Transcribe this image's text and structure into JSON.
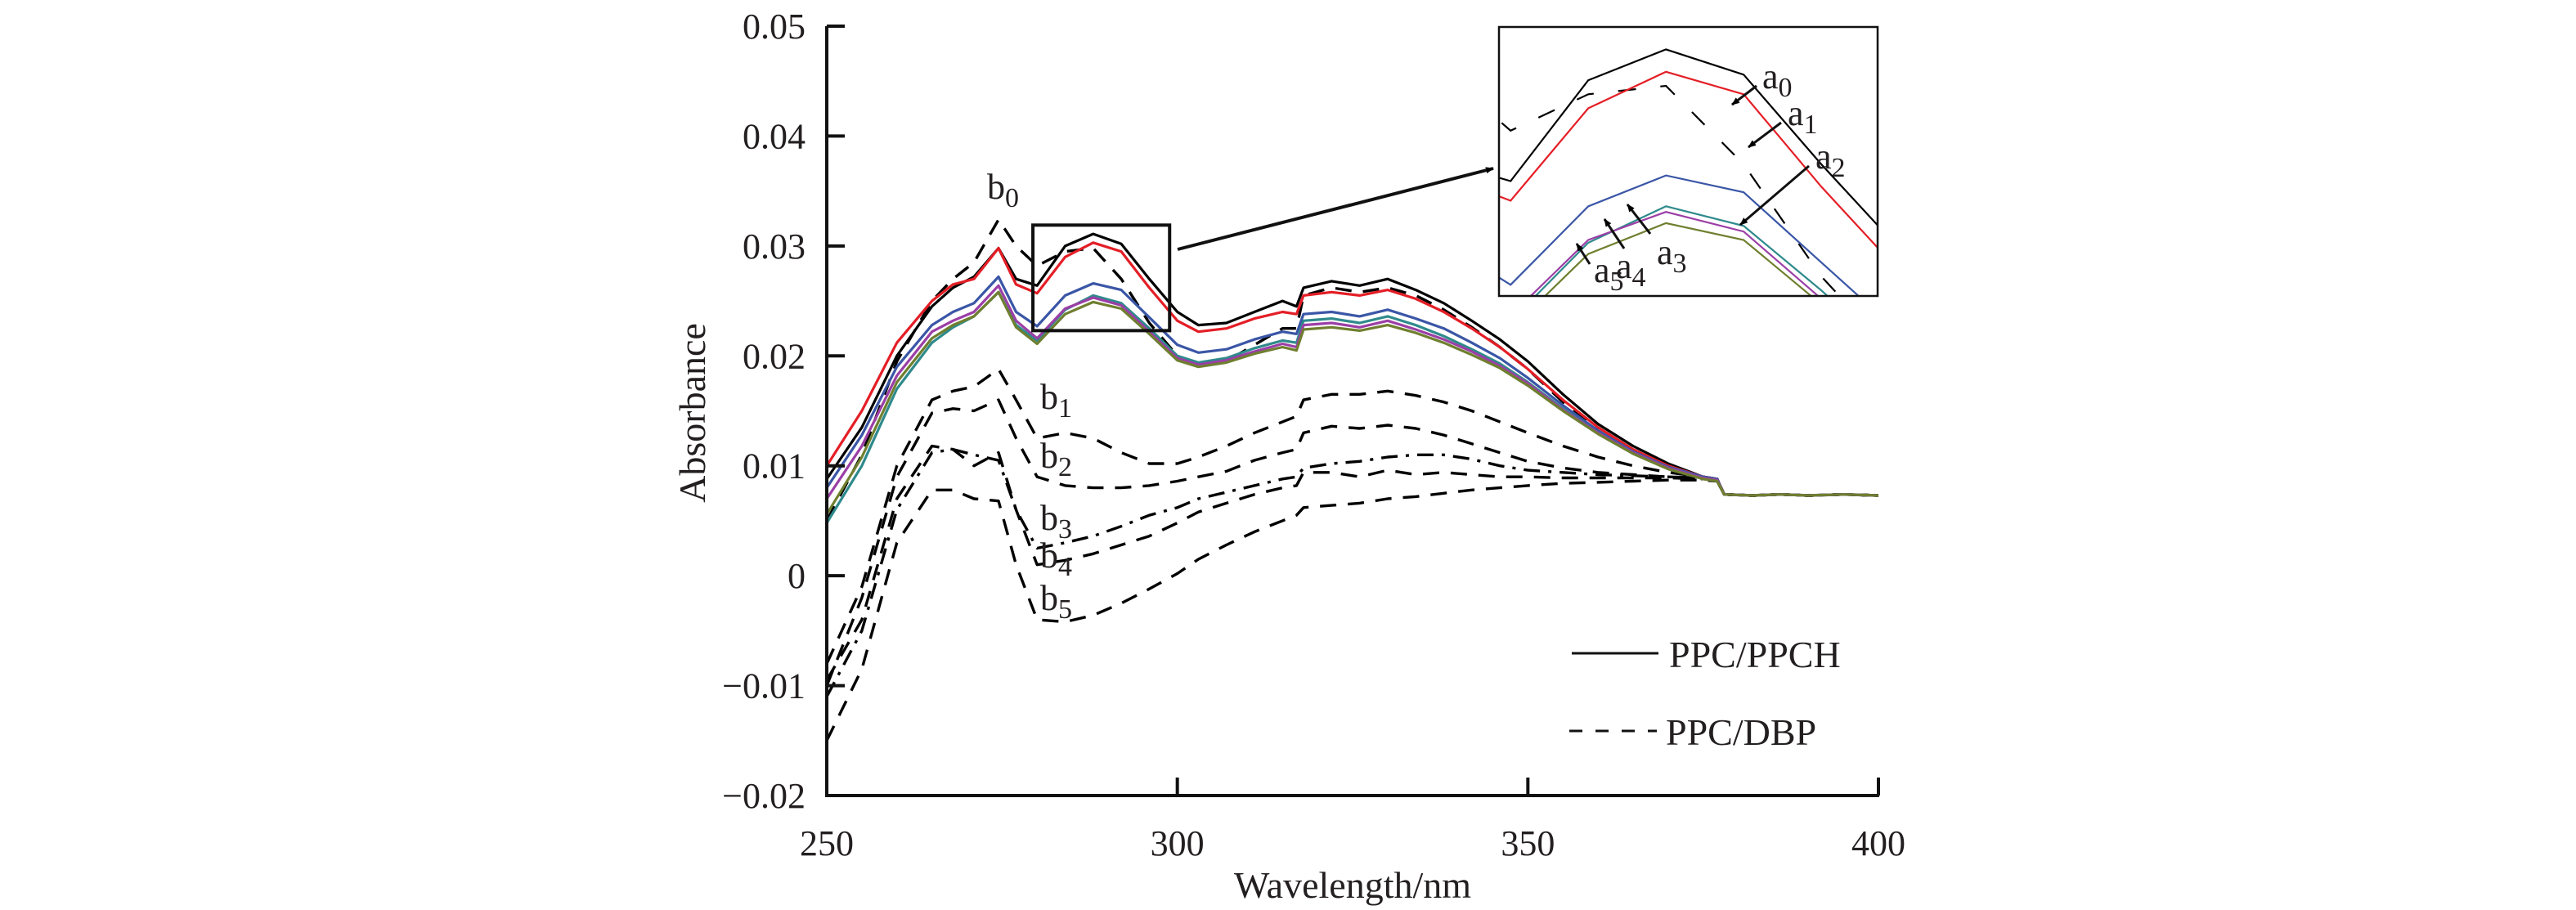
{
  "chart_data": {
    "type": "line",
    "title": "",
    "xlabel": "Wavelength/nm",
    "ylabel": "Absorbance",
    "xlim": [
      250,
      400
    ],
    "ylim": [
      -0.02,
      0.05
    ],
    "xticks": [
      250,
      300,
      350,
      400
    ],
    "xtick_labels": [
      "250",
      "300",
      "350",
      "400"
    ],
    "yticks": [
      -0.02,
      -0.01,
      0,
      0.01,
      0.02,
      0.03,
      0.04,
      0.05
    ],
    "ytick_labels": [
      "−0.02",
      "−0.01",
      "0",
      "0.01",
      "0.02",
      "0.03",
      "0.04",
      "0.05"
    ],
    "grid": false,
    "legend": {
      "placement": "bottom-right",
      "entries": [
        {
          "label": "PPC/PPCH",
          "style": "solid"
        },
        {
          "label": "PPC/DBP",
          "style": "dashed"
        }
      ]
    },
    "x": [
      250,
      255,
      260,
      265,
      268,
      271,
      274.5,
      277,
      280,
      284,
      288,
      292,
      296,
      300,
      303,
      307,
      311,
      315,
      317,
      318,
      322,
      326,
      330,
      334,
      338,
      342,
      346,
      350,
      355,
      360,
      365,
      370,
      375,
      377,
      378,
      382,
      386,
      390,
      395,
      400
    ],
    "series": [
      {
        "name": "a0",
        "group": "PPC/PPCH",
        "style": "solid",
        "color": "#000000",
        "values": [
          0.0088,
          0.0135,
          0.02,
          0.0245,
          0.0262,
          0.0272,
          0.0298,
          0.027,
          0.0264,
          0.03,
          0.0311,
          0.0302,
          0.027,
          0.024,
          0.0228,
          0.023,
          0.024,
          0.025,
          0.0245,
          0.0262,
          0.0268,
          0.0264,
          0.027,
          0.026,
          0.0248,
          0.0232,
          0.0215,
          0.0195,
          0.0165,
          0.0138,
          0.0118,
          0.0102,
          0.009,
          0.0088,
          0.0074,
          0.0073,
          0.0074,
          0.0073,
          0.0074,
          0.0073
        ]
      },
      {
        "name": "a1",
        "group": "PPC/PPCH",
        "style": "solid",
        "color": "#e41e26",
        "values": [
          0.01,
          0.015,
          0.0212,
          0.025,
          0.0265,
          0.027,
          0.0298,
          0.0265,
          0.0257,
          0.029,
          0.0303,
          0.0295,
          0.0262,
          0.0232,
          0.0222,
          0.0225,
          0.0234,
          0.024,
          0.0238,
          0.0255,
          0.0258,
          0.0255,
          0.026,
          0.0252,
          0.024,
          0.0225,
          0.0208,
          0.0188,
          0.016,
          0.0135,
          0.0115,
          0.01,
          0.009,
          0.0088,
          0.0074,
          0.0073,
          0.0074,
          0.0073,
          0.0074,
          0.0073
        ]
      },
      {
        "name": "a2",
        "group": "PPC/PPCH",
        "style": "solid",
        "color": "#3a56a6",
        "values": [
          0.008,
          0.0128,
          0.019,
          0.0228,
          0.024,
          0.0248,
          0.0272,
          0.024,
          0.0227,
          0.0255,
          0.0266,
          0.026,
          0.0235,
          0.021,
          0.0203,
          0.0206,
          0.0215,
          0.0222,
          0.022,
          0.0238,
          0.024,
          0.0236,
          0.0242,
          0.0234,
          0.0225,
          0.0212,
          0.0198,
          0.018,
          0.0155,
          0.0132,
          0.0113,
          0.0099,
          0.009,
          0.0088,
          0.0074,
          0.0073,
          0.0074,
          0.0073,
          0.0074,
          0.0073
        ]
      },
      {
        "name": "a3",
        "group": "PPC/PPCH",
        "style": "solid",
        "color": "#2f8a8c",
        "values": [
          0.0048,
          0.01,
          0.017,
          0.0212,
          0.0226,
          0.0236,
          0.0258,
          0.0228,
          0.0214,
          0.0242,
          0.0255,
          0.0248,
          0.0225,
          0.02,
          0.0194,
          0.0198,
          0.0207,
          0.0214,
          0.0212,
          0.0232,
          0.0234,
          0.023,
          0.0236,
          0.0228,
          0.0218,
          0.0206,
          0.0193,
          0.0176,
          0.0152,
          0.013,
          0.0112,
          0.0098,
          0.0089,
          0.0087,
          0.0074,
          0.0073,
          0.0074,
          0.0073,
          0.0074,
          0.0073
        ]
      },
      {
        "name": "a4",
        "group": "PPC/PPCH",
        "style": "solid",
        "color": "#9b3fa6",
        "values": [
          0.007,
          0.0118,
          0.0182,
          0.0222,
          0.0232,
          0.024,
          0.0264,
          0.0232,
          0.0216,
          0.0243,
          0.0253,
          0.0246,
          0.0222,
          0.0198,
          0.0192,
          0.0196,
          0.0204,
          0.0211,
          0.0208,
          0.0228,
          0.023,
          0.0226,
          0.0232,
          0.0224,
          0.0215,
          0.0204,
          0.0191,
          0.0175,
          0.0151,
          0.013,
          0.0112,
          0.0098,
          0.0089,
          0.0087,
          0.0074,
          0.0073,
          0.0074,
          0.0073,
          0.0074,
          0.0073
        ]
      },
      {
        "name": "a5",
        "group": "PPC/PPCH",
        "style": "solid",
        "color": "#6f7f2f",
        "values": [
          0.0056,
          0.0108,
          0.0176,
          0.0216,
          0.0228,
          0.0236,
          0.0258,
          0.0226,
          0.0211,
          0.0238,
          0.0249,
          0.0243,
          0.022,
          0.0196,
          0.019,
          0.0194,
          0.0202,
          0.0208,
          0.0205,
          0.0224,
          0.0226,
          0.0223,
          0.0228,
          0.0221,
          0.0212,
          0.0201,
          0.0189,
          0.0173,
          0.015,
          0.0129,
          0.0111,
          0.0097,
          0.0088,
          0.0086,
          0.0074,
          0.0073,
          0.0074,
          0.0073,
          0.0074,
          0.0073
        ]
      },
      {
        "name": "b0",
        "group": "PPC/DBP",
        "style": "dashed",
        "color": "#000000",
        "values": [
          0.005,
          0.011,
          0.0195,
          0.025,
          0.027,
          0.0285,
          0.0324,
          0.03,
          0.0282,
          0.0295,
          0.0298,
          0.027,
          0.023,
          0.02,
          0.019,
          0.0195,
          0.021,
          0.0225,
          0.0225,
          0.0255,
          0.0262,
          0.0258,
          0.0262,
          0.0255,
          0.0242,
          0.0226,
          0.0208,
          0.0188,
          0.0158,
          0.0132,
          0.0112,
          0.0098,
          0.0089,
          0.0086,
          0.0074,
          0.0073,
          0.0074,
          0.0073,
          0.0074,
          0.0073
        ]
      },
      {
        "name": "b1",
        "group": "PPC/DBP",
        "style": "dashed",
        "color": "#000000",
        "values": [
          -0.008,
          -0.001,
          0.01,
          0.016,
          0.0168,
          0.0172,
          0.0188,
          0.016,
          0.0125,
          0.013,
          0.0125,
          0.0112,
          0.0102,
          0.0102,
          0.0108,
          0.0118,
          0.013,
          0.014,
          0.0145,
          0.016,
          0.0165,
          0.0165,
          0.0168,
          0.0164,
          0.0158,
          0.015,
          0.014,
          0.013,
          0.0118,
          0.0108,
          0.01,
          0.0094,
          0.009,
          0.0088,
          0.0074,
          0.0073,
          0.0074,
          0.0073,
          0.0074,
          0.0073
        ]
      },
      {
        "name": "b2",
        "group": "PPC/DBP",
        "style": "dashed",
        "color": "#000000",
        "values": [
          -0.01,
          -0.002,
          0.009,
          0.0148,
          0.0152,
          0.015,
          0.016,
          0.0125,
          0.009,
          0.0082,
          0.008,
          0.008,
          0.0082,
          0.0086,
          0.009,
          0.0095,
          0.0105,
          0.0112,
          0.0115,
          0.013,
          0.0136,
          0.0134,
          0.0137,
          0.0134,
          0.0128,
          0.012,
          0.0112,
          0.0104,
          0.0098,
          0.0094,
          0.0092,
          0.009,
          0.0089,
          0.0088,
          0.0074,
          0.0073,
          0.0074,
          0.0073,
          0.0074,
          0.0073
        ]
      },
      {
        "name": "b3",
        "group": "PPC/DBP",
        "style": "dashdot",
        "color": "#000000",
        "values": [
          -0.011,
          -0.005,
          0.006,
          0.0112,
          0.0115,
          0.011,
          0.0105,
          0.006,
          0.0025,
          0.003,
          0.0036,
          0.0045,
          0.0055,
          0.0062,
          0.007,
          0.0076,
          0.0082,
          0.0088,
          0.009,
          0.0098,
          0.0102,
          0.0104,
          0.0108,
          0.011,
          0.011,
          0.0106,
          0.01,
          0.0096,
          0.0094,
          0.0092,
          0.0091,
          0.009,
          0.0089,
          0.0088,
          0.0074,
          0.0073,
          0.0074,
          0.0073,
          0.0074,
          0.0073
        ]
      },
      {
        "name": "b4",
        "group": "PPC/DBP",
        "style": "dashed",
        "color": "#000000",
        "values": [
          -0.0095,
          -0.004,
          0.007,
          0.0118,
          0.0115,
          0.01,
          0.0112,
          0.006,
          0.001,
          0.0014,
          0.002,
          0.0028,
          0.0036,
          0.0048,
          0.0058,
          0.0066,
          0.0074,
          0.008,
          0.0082,
          0.0094,
          0.0094,
          0.009,
          0.0096,
          0.0092,
          0.0094,
          0.0092,
          0.009,
          0.009,
          0.0089,
          0.0089,
          0.0089,
          0.0089,
          0.0088,
          0.0087,
          0.0074,
          0.0073,
          0.0074,
          0.0073,
          0.0074,
          0.0073
        ]
      },
      {
        "name": "b5",
        "group": "PPC/DBP",
        "style": "dashed",
        "color": "#000000",
        "values": [
          -0.015,
          -0.0085,
          0.003,
          0.0078,
          0.0078,
          0.007,
          0.0068,
          0.001,
          -0.004,
          -0.0042,
          -0.0036,
          -0.0025,
          -0.0012,
          0.0002,
          0.0015,
          0.0028,
          0.004,
          0.005,
          0.0055,
          0.0062,
          0.0064,
          0.0066,
          0.007,
          0.0072,
          0.0075,
          0.0078,
          0.008,
          0.0082,
          0.0084,
          0.0085,
          0.0086,
          0.0087,
          0.0087,
          0.0086,
          0.0074,
          0.0073,
          0.0074,
          0.0073,
          0.0074,
          0.0073
        ]
      }
    ],
    "annotations": {
      "curve_labels": [
        {
          "series": "b0",
          "base": "b",
          "sub": "0"
        },
        {
          "series": "b1",
          "base": "b",
          "sub": "1"
        },
        {
          "series": "b2",
          "base": "b",
          "sub": "2"
        },
        {
          "series": "b3",
          "base": "b",
          "sub": "3"
        },
        {
          "series": "b4",
          "base": "b",
          "sub": "4"
        },
        {
          "series": "b5",
          "base": "b",
          "sub": "5"
        }
      ],
      "zoom_box": {
        "xlim": [
          279.4,
          298.9
        ],
        "ylim": [
          0.0223,
          0.0319
        ]
      },
      "inset": {
        "description": "magnified view of the zoom box region",
        "xlim": [
          279.4,
          298.9
        ],
        "ylim": [
          0.0223,
          0.0319
        ],
        "labels": [
          {
            "series": "a0",
            "base": "a",
            "sub": "0"
          },
          {
            "series": "a1",
            "base": "a",
            "sub": "1"
          },
          {
            "series": "a2",
            "base": "a",
            "sub": "2"
          },
          {
            "series": "a3",
            "base": "a",
            "sub": "3"
          },
          {
            "series": "a4",
            "base": "a",
            "sub": "4"
          },
          {
            "series": "a5",
            "base": "a",
            "sub": "5"
          }
        ]
      }
    }
  }
}
